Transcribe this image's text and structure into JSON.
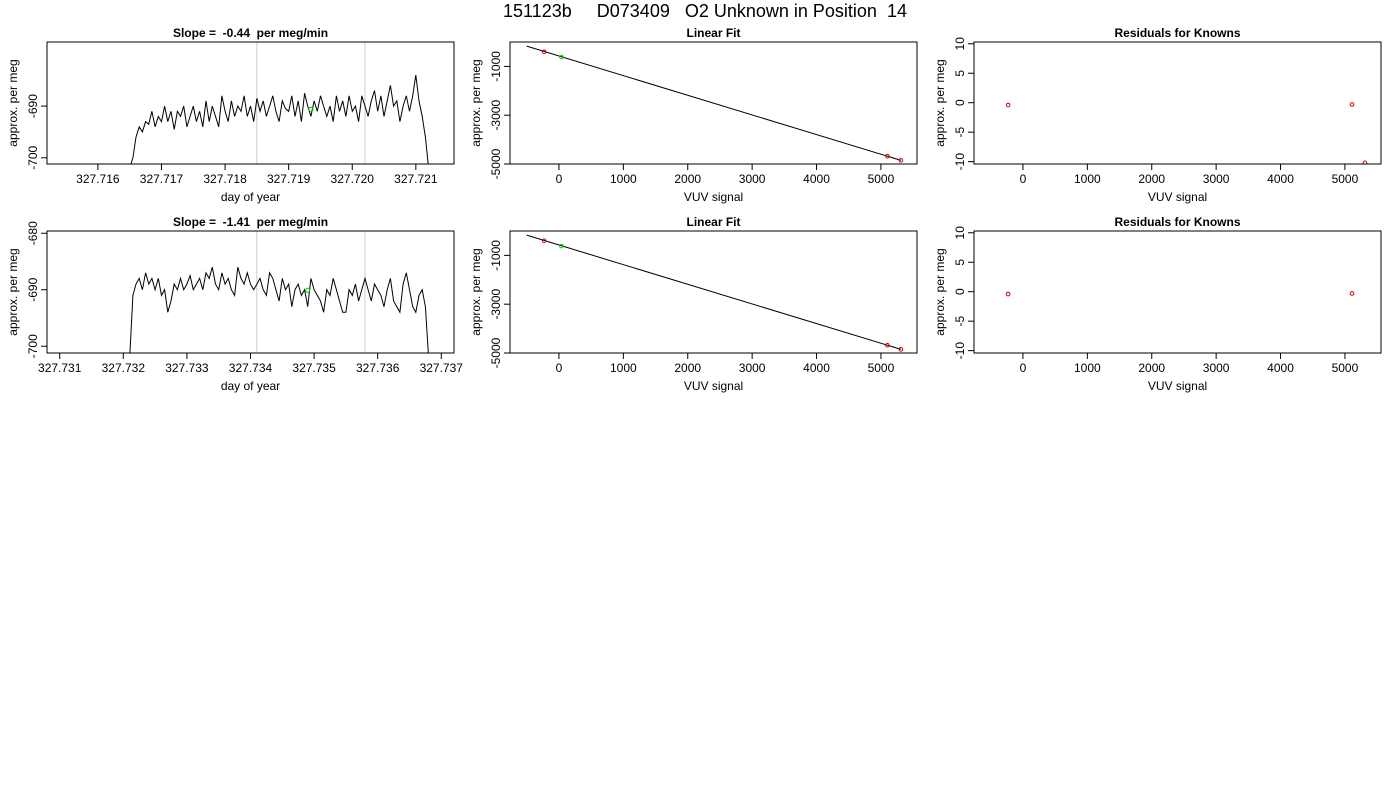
{
  "page_title": "151123b     D073409   O2 Unknown in Position  14",
  "chart_data": [
    {
      "type": "line",
      "title": "Slope =  -0.44  per meg/min",
      "xlabel": "day of year",
      "ylabel": "approx. per meg",
      "xlim": [
        327.7152,
        327.7216
      ],
      "ylim": [
        -701.2,
        -677.6
      ],
      "xticks": [
        "327.716",
        "327.717",
        "327.718",
        "327.719",
        "327.720",
        "327.721"
      ],
      "yticks": [
        "-700",
        "-690"
      ],
      "vlines": [
        327.7185,
        327.7202
      ],
      "vline_color": "#cccccc",
      "series": [
        {
          "color": "#000000",
          "x": [
            327.7165,
            327.71655,
            327.7166,
            327.71665,
            327.7167,
            327.71675,
            327.7168,
            327.71685,
            327.7169,
            327.71695,
            327.717,
            327.71705,
            327.7171,
            327.71715,
            327.7172,
            327.71725,
            327.7173,
            327.71735,
            327.7174,
            327.71745,
            327.7175,
            327.71755,
            327.7176,
            327.71765,
            327.7177,
            327.71775,
            327.7178,
            327.71785,
            327.7179,
            327.71795,
            327.718,
            327.71805,
            327.7181,
            327.71815,
            327.7182,
            327.71825,
            327.7183,
            327.71835,
            327.7184,
            327.71845,
            327.7185,
            327.71855,
            327.7186,
            327.71865,
            327.7187,
            327.71875,
            327.7188,
            327.71885,
            327.7189,
            327.71895,
            327.719,
            327.71905,
            327.7191,
            327.71915,
            327.7192,
            327.71925,
            327.7193,
            327.71935,
            327.7194,
            327.71945,
            327.7195,
            327.71955,
            327.7196,
            327.71965,
            327.7197,
            327.71975,
            327.7198,
            327.71985,
            327.7199,
            327.71995,
            327.72,
            327.72005,
            327.7201,
            327.72015,
            327.7202,
            327.72025,
            327.7203,
            327.72035,
            327.7204,
            327.72045,
            327.7205,
            327.72055,
            327.7206,
            327.72065,
            327.7207,
            327.72075,
            327.7208,
            327.72085,
            327.7209,
            327.72095,
            327.721,
            327.72105,
            327.7211,
            327.72115,
            327.7212
          ],
          "y": [
            -702,
            -700,
            -696,
            -694,
            -695,
            -693,
            -693.5,
            -691,
            -694,
            -692,
            -693,
            -690,
            -693,
            -691,
            -694.5,
            -691,
            -692,
            -690,
            -694,
            -692,
            -690,
            -693,
            -691,
            -694,
            -689,
            -693,
            -690,
            -692,
            -694,
            -688,
            -691,
            -693,
            -689,
            -692,
            -690,
            -691,
            -688,
            -692,
            -690,
            -693,
            -688.5,
            -691,
            -689,
            -692,
            -690,
            -688,
            -691,
            -693,
            -689,
            -690.5,
            -691,
            -688,
            -692,
            -689,
            -693,
            -687.5,
            -690,
            -692,
            -689,
            -691,
            -688,
            -690,
            -692,
            -690,
            -693,
            -688,
            -691,
            -689,
            -692,
            -688,
            -691,
            -690,
            -693,
            -688,
            -690,
            -692,
            -689,
            -687,
            -691,
            -688,
            -692,
            -689,
            -686,
            -690,
            -689,
            -693,
            -690,
            -688,
            -691,
            -688,
            -684,
            -689,
            -692,
            -696,
            -702
          ]
        }
      ],
      "highlight_points": [
        {
          "x": 327.71935,
          "y": -690.6,
          "color": "#00cc00"
        }
      ]
    },
    {
      "type": "scatter",
      "title": "Linear Fit",
      "xlabel": "VUV signal",
      "ylabel": "approx. per meg",
      "xlim": [
        -760,
        5560
      ],
      "ylim": [
        -5000,
        0
      ],
      "xticks": [
        "0",
        "1000",
        "2000",
        "3000",
        "4000",
        "5000"
      ],
      "yticks": [
        "-5000",
        "-3000",
        "-1000"
      ],
      "fit_line": [
        [
          -500,
          -170
        ],
        [
          5310,
          -4850
        ]
      ],
      "points": [
        {
          "x": -230,
          "y": -400,
          "color": "#cc0000"
        },
        {
          "x": 40,
          "y": -620,
          "color": "#00cc00"
        },
        {
          "x": 5100,
          "y": -4680,
          "color": "#cc0000"
        },
        {
          "x": 5310,
          "y": -4850,
          "color": "#cc0000"
        }
      ]
    },
    {
      "type": "scatter",
      "title": "Residuals for Knowns",
      "xlabel": "VUV signal",
      "ylabel": "approx. per meg",
      "xlim": [
        -760,
        5560
      ],
      "ylim": [
        -10.4,
        10.3
      ],
      "xticks": [
        "0",
        "1000",
        "2000",
        "3000",
        "4000",
        "5000"
      ],
      "yticks": [
        "-10",
        "-5",
        "0",
        "5",
        "10"
      ],
      "points": [
        {
          "x": -230,
          "y": -0.4,
          "color": "#cc0000"
        },
        {
          "x": 5110,
          "y": -0.3,
          "color": "#cc0000"
        },
        {
          "x": 5310,
          "y": -10.2,
          "color": "#cc0000"
        }
      ]
    },
    {
      "type": "line",
      "title": "Slope =  -1.41  per meg/min",
      "xlabel": "day of year",
      "ylabel": "approx. per meg",
      "xlim": [
        327.7308,
        327.7372
      ],
      "ylim": [
        -701.2,
        -679.6
      ],
      "xticks": [
        "327.731",
        "327.732",
        "327.733",
        "327.734",
        "327.735",
        "327.736",
        "327.737"
      ],
      "yticks": [
        "-700",
        "-690",
        "-680"
      ],
      "vlines": [
        327.7341,
        327.7358
      ],
      "vline_color": "#cccccc",
      "series": [
        {
          "color": "#000000",
          "x": [
            327.7321,
            327.73215,
            327.7322,
            327.73225,
            327.7323,
            327.73235,
            327.7324,
            327.73245,
            327.7325,
            327.73255,
            327.7326,
            327.73265,
            327.7327,
            327.73275,
            327.7328,
            327.73285,
            327.7329,
            327.73295,
            327.733,
            327.73305,
            327.7331,
            327.73315,
            327.7332,
            327.73325,
            327.7333,
            327.73335,
            327.7334,
            327.73345,
            327.7335,
            327.73355,
            327.7336,
            327.73365,
            327.7337,
            327.73375,
            327.7338,
            327.73385,
            327.7339,
            327.73395,
            327.734,
            327.73405,
            327.7341,
            327.73415,
            327.7342,
            327.73425,
            327.7343,
            327.73435,
            327.7344,
            327.73445,
            327.7345,
            327.73455,
            327.7346,
            327.73465,
            327.7347,
            327.73475,
            327.7348,
            327.73485,
            327.7349,
            327.73495,
            327.735,
            327.73505,
            327.7351,
            327.73515,
            327.7352,
            327.73525,
            327.7353,
            327.73535,
            327.7354,
            327.73545,
            327.7355,
            327.73555,
            327.7356,
            327.73565,
            327.7357,
            327.73575,
            327.7358,
            327.73585,
            327.7359,
            327.73595,
            327.736,
            327.73605,
            327.7361,
            327.73615,
            327.7362,
            327.73625,
            327.7363,
            327.73635,
            327.7364,
            327.73645,
            327.7365,
            327.73655,
            327.7366,
            327.73665,
            327.7367,
            327.73675,
            327.7368
          ],
          "y": [
            -702,
            -691,
            -689,
            -688,
            -690,
            -687,
            -689,
            -688,
            -690,
            -688,
            -691,
            -690,
            -694,
            -692,
            -689,
            -690,
            -688,
            -690,
            -689,
            -687.5,
            -690,
            -689,
            -688,
            -690,
            -687,
            -688,
            -686,
            -689,
            -690,
            -687,
            -689,
            -688,
            -690,
            -691,
            -686,
            -688,
            -689,
            -687,
            -689,
            -690,
            -689,
            -688,
            -690,
            -691,
            -687,
            -688,
            -690,
            -692,
            -688,
            -690,
            -689,
            -693,
            -690,
            -689,
            -691,
            -690,
            -693,
            -688,
            -690,
            -691,
            -692,
            -694,
            -690,
            -691,
            -688,
            -690,
            -692,
            -694,
            -694,
            -690,
            -691,
            -689,
            -692,
            -690,
            -688,
            -690,
            -692,
            -689,
            -690,
            -691,
            -693,
            -690,
            -688,
            -692,
            -693,
            -694,
            -689,
            -687,
            -690,
            -693,
            -694,
            -691,
            -690,
            -693,
            -702
          ]
        }
      ],
      "highlight_points": [
        {
          "x": 327.7349,
          "y": -690.1,
          "color": "#00cc00"
        }
      ]
    },
    {
      "type": "scatter",
      "title": "Linear Fit",
      "xlabel": "VUV signal",
      "ylabel": "approx. per meg",
      "xlim": [
        -760,
        5560
      ],
      "ylim": [
        -5000,
        0
      ],
      "xticks": [
        "0",
        "1000",
        "2000",
        "3000",
        "4000",
        "5000"
      ],
      "yticks": [
        "-5000",
        "-3000",
        "-1000"
      ],
      "fit_line": [
        [
          -500,
          -170
        ],
        [
          5310,
          -4850
        ]
      ],
      "points": [
        {
          "x": -230,
          "y": -400,
          "color": "#cc0000"
        },
        {
          "x": 40,
          "y": -620,
          "color": "#00cc00"
        },
        {
          "x": 5100,
          "y": -4680,
          "color": "#cc0000"
        },
        {
          "x": 5310,
          "y": -4850,
          "color": "#cc0000"
        }
      ]
    },
    {
      "type": "scatter",
      "title": "Residuals for Knowns",
      "xlabel": "VUV signal",
      "ylabel": "approx. per meg",
      "xlim": [
        -760,
        5560
      ],
      "ylim": [
        -10.4,
        10.3
      ],
      "xticks": [
        "0",
        "1000",
        "2000",
        "3000",
        "4000",
        "5000"
      ],
      "yticks": [
        "-10",
        "-5",
        "0",
        "5",
        "10"
      ],
      "points": [
        {
          "x": -230,
          "y": -0.4,
          "color": "#cc0000"
        },
        {
          "x": 5110,
          "y": -0.3,
          "color": "#cc0000"
        }
      ]
    }
  ]
}
